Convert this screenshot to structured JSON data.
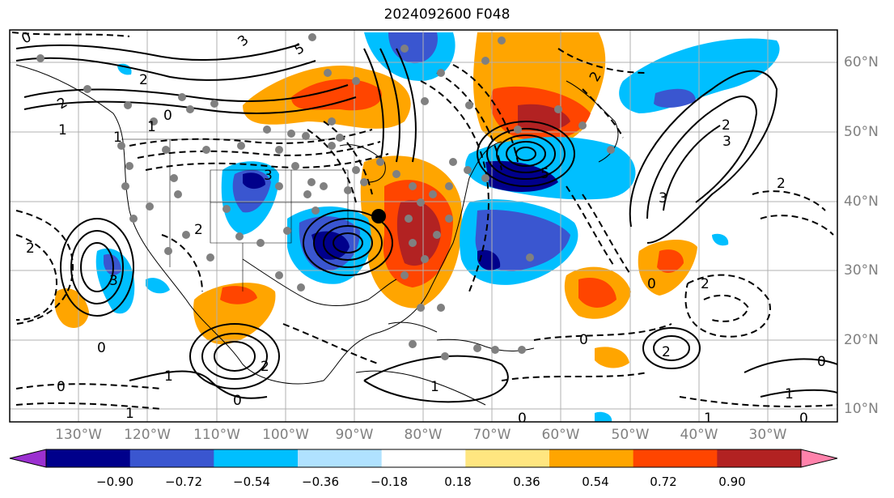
{
  "title": "2024092600 F048",
  "map": {
    "lon_labels": [
      "130°W",
      "120°W",
      "110°W",
      "100°W",
      "90°W",
      "80°W",
      "70°W",
      "60°W",
      "50°W",
      "40°W",
      "30°W"
    ],
    "lat_labels": [
      "60°N",
      "50°N",
      "40°N",
      "30°N",
      "20°N",
      "10°N"
    ]
  },
  "colorbar": {
    "ticks": [
      "−0.90",
      "−0.72",
      "−0.54",
      "−0.36",
      "−0.18",
      "0.18",
      "0.36",
      "0.54",
      "0.72",
      "0.90"
    ],
    "colors": [
      "#9b30d0",
      "#00008b",
      "#3a56d0",
      "#00bfff",
      "#b0e2ff",
      "#ffffff",
      "#ffe680",
      "#ffa500",
      "#ff4500",
      "#b22222",
      "#ff82ab"
    ]
  },
  "contour_labels": [
    "0",
    "2",
    "3",
    "5",
    "2",
    "1",
    "0",
    "1",
    "3",
    "2",
    "5",
    "1",
    "2",
    "3",
    "0",
    "2",
    "2",
    "3",
    "2",
    "1",
    "0",
    "1",
    "0",
    "1",
    "0",
    "2",
    "3",
    "2",
    "0",
    "1",
    "2",
    "0",
    "0",
    "1",
    "0"
  ],
  "colors": {
    "frame": "#000000",
    "grid": "#b0b0b0",
    "station_dot": "#808080"
  }
}
